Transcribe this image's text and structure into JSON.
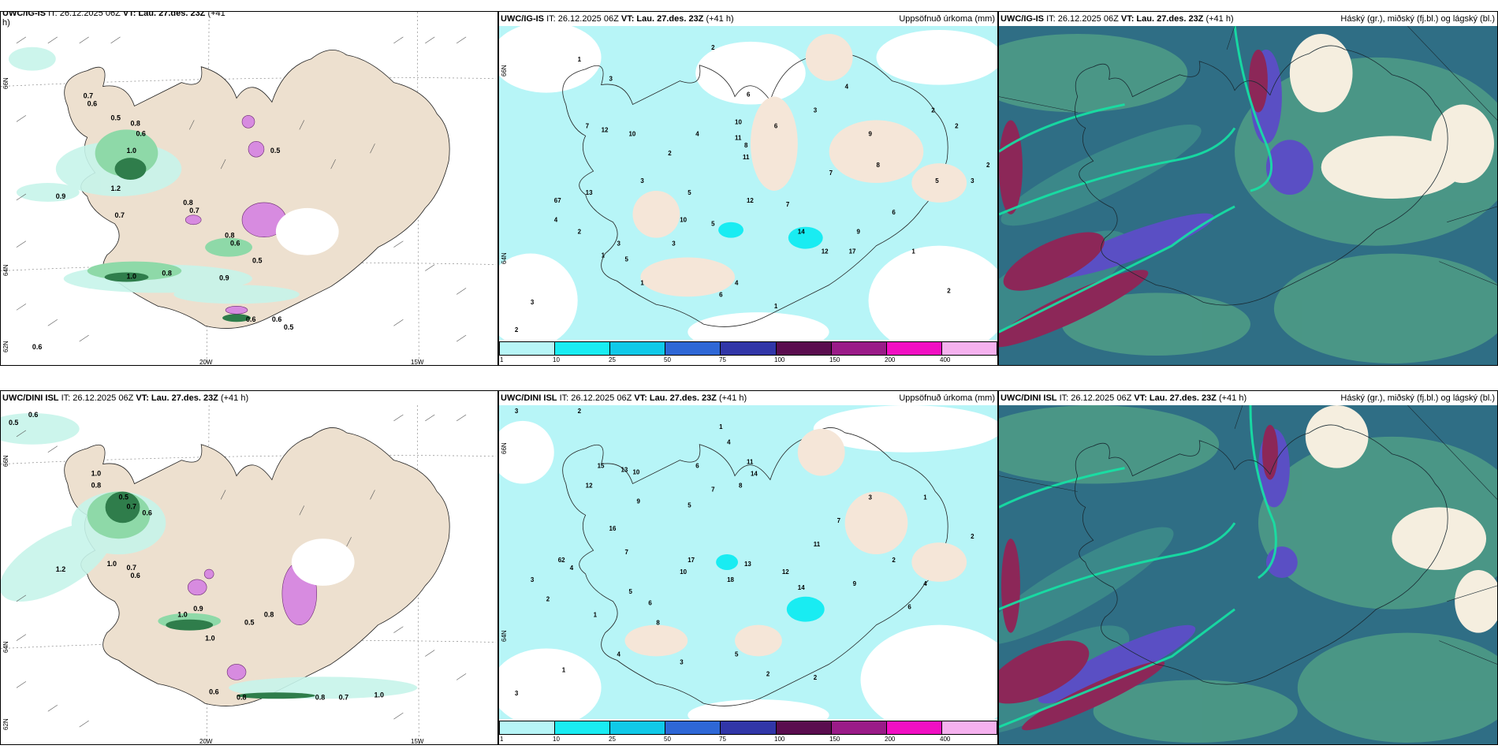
{
  "colors": {
    "land": "#ede0cf",
    "precip_light": "#c7f4ea",
    "precip_med": "#8ed9a8",
    "precip_dark": "#2f7d4b",
    "snow_pink": "#d78be0",
    "ice_blue": "#b7f5f7",
    "ice_cyan": "#19ecf2",
    "cloud_base": "#2f6e85",
    "cloud_green": "#4f9e86",
    "cloud_pale": "#f5eedf",
    "cloud_magenta": "#8c2758",
    "cloud_purple": "#5a4fc4"
  },
  "legend": {
    "ticks": [
      "1",
      "10",
      "25",
      "50",
      "75",
      "100",
      "150",
      "200",
      "400"
    ],
    "colors": [
      "#b7f5f7",
      "#19ecf2",
      "#10c9e8",
      "#2e67d6",
      "#3136a8",
      "#5a0d4f",
      "#9a1b88",
      "#f10fc3",
      "#f5b1ee"
    ]
  },
  "panels": {
    "p1": {
      "model": "UWC/IG-IS",
      "it": "IT: 26.12.2025 06Z",
      "vt_label": "VT:",
      "vt": "Lau. 27.des. 23Z",
      "lead": "(+41",
      "lead2": "h)",
      "axis": {
        "lon_a": "20W",
        "lon_b": "15W",
        "lat_a": "66N",
        "lat_b": "64N",
        "lat_c": "62N"
      },
      "labels": [
        "0.7",
        "0.6",
        "0.5",
        "0.8",
        "0.6",
        "1.0",
        "0.9",
        "1.2",
        "0.7",
        "0.8",
        "0.7",
        "0.6",
        "0.8",
        "0.5",
        "1.0",
        "0.8",
        "0.9",
        "0.5",
        "0.6",
        "0.6",
        "0.6",
        "0.5"
      ]
    },
    "p2": {
      "model": "UWC/IG-IS",
      "it": "IT: 26.12.2025 06Z",
      "vt_label": "VT:",
      "vt": "Lau. 27.des. 23Z",
      "lead": "(+41 h)",
      "right_title": "Uppsöfnuð úrkoma (mm)",
      "axis": {
        "lat_a": "66N",
        "lat_b": "64N"
      },
      "labels": [
        "2",
        "1",
        "3",
        "12",
        "10",
        "7",
        "6",
        "10",
        "11",
        "8",
        "4",
        "2",
        "3",
        "5",
        "13",
        "67",
        "11",
        "12",
        "10",
        "7",
        "14",
        "12",
        "9",
        "17",
        "5",
        "2",
        "4",
        "3",
        "1",
        "6",
        "7",
        "8",
        "9",
        "3",
        "4",
        "2",
        "5",
        "6",
        "1",
        "2",
        "3",
        "2",
        "1",
        "4",
        "6",
        "5",
        "3",
        "2",
        "1",
        "2",
        "3"
      ]
    },
    "p3": {
      "model": "UWC/IG-IS",
      "it": "IT: 26.12.2025 06Z",
      "vt_label": "VT:",
      "vt": "Lau. 27.des. 23Z",
      "lead": "(+41 h)",
      "right_title": "Háský (gr.), miðský (fj.bl.) og lágský (bl.)"
    },
    "p4": {
      "model": "UWC/DINI ISL",
      "it": "IT: 26.12.2025 06Z",
      "vt_label": "VT:",
      "vt": "Lau. 27.des. 23Z",
      "lead": "(+41 h)",
      "axis": {
        "lon_a": "20W",
        "lon_b": "15W",
        "lat_a": "66N",
        "lat_b": "64N",
        "lat_c": "62N"
      },
      "labels": [
        "0.5",
        "0.6",
        "1.0",
        "0.8",
        "0.5",
        "0.7",
        "0.6",
        "1.2",
        "0.7",
        "1.0",
        "0.6",
        "1.0",
        "0.9",
        "0.8",
        "0.5",
        "0.8",
        "1.0",
        "0.6",
        "0.8",
        "0.7",
        "1.0"
      ]
    },
    "p5": {
      "model": "UWC/DINI ISL",
      "it": "IT: 26.12.2025 06Z",
      "vt_label": "VT:",
      "vt": "Lau. 27.des. 23Z",
      "lead": "(+41 h)",
      "right_title": "Uppsöfnuð úrkoma (mm)",
      "axis": {
        "lat_a": "66N",
        "lat_b": "64N"
      },
      "labels": [
        "3",
        "2",
        "1",
        "15",
        "13",
        "10",
        "4",
        "6",
        "7",
        "11",
        "14",
        "12",
        "8",
        "9",
        "5",
        "16",
        "62",
        "17",
        "13",
        "18",
        "10",
        "7",
        "12",
        "4",
        "3",
        "2",
        "5",
        "6",
        "1",
        "8",
        "14",
        "11",
        "9",
        "7",
        "3",
        "2",
        "4",
        "6",
        "1",
        "2",
        "3",
        "5",
        "2",
        "4",
        "1",
        "3",
        "2"
      ]
    },
    "p6": {
      "model": "UWC/DINI ISL",
      "it": "IT: 26.12.2025 06Z",
      "vt_label": "VT:",
      "vt": "Lau. 27.des. 23Z",
      "lead": "(+41 h)",
      "right_title": "Háský (gr.), miðský (fj.bl.) og lágský (bl.)"
    }
  }
}
